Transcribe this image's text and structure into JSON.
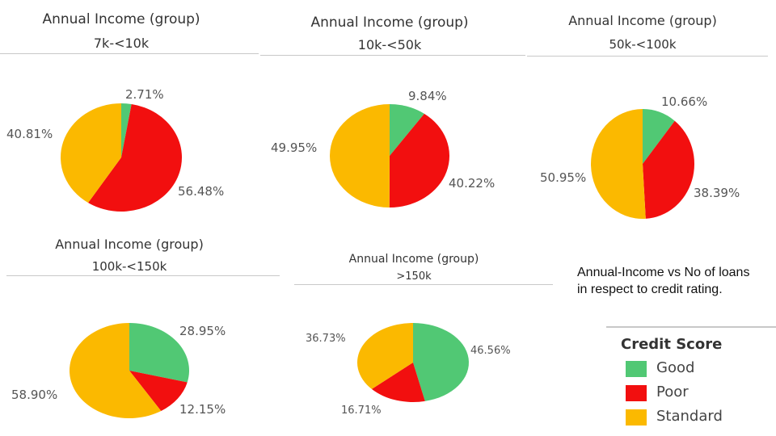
{
  "colors": {
    "Good": "#51c874",
    "Poor": "#f20f0f",
    "Standard": "#fbb900"
  },
  "note": "Annual-Income vs No of loans in respect to credit rating.",
  "legend": {
    "title": "Credit Score",
    "items": [
      {
        "label": "Good",
        "color": "#51c874"
      },
      {
        "label": "Poor",
        "color": "#f20f0f"
      },
      {
        "label": "Standard",
        "color": "#fbb900"
      }
    ]
  },
  "chart_data": [
    {
      "type": "pie",
      "title": "Annual Income (group)",
      "subtitle": "7k-<10k",
      "slices": [
        {
          "category": "Good",
          "value": 2.71,
          "label": "2.71%"
        },
        {
          "category": "Poor",
          "value": 56.48,
          "label": "56.48%"
        },
        {
          "category": "Standard",
          "value": 40.81,
          "label": "40.81%"
        }
      ]
    },
    {
      "type": "pie",
      "title": "Annual Income (group)",
      "subtitle": "10k-<50k",
      "slices": [
        {
          "category": "Good",
          "value": 9.84,
          "label": "9.84%"
        },
        {
          "category": "Poor",
          "value": 40.22,
          "label": "40.22%"
        },
        {
          "category": "Standard",
          "value": 49.95,
          "label": "49.95%"
        }
      ]
    },
    {
      "type": "pie",
      "title": "Annual Income (group)",
      "subtitle": "50k-<100k",
      "slices": [
        {
          "category": "Good",
          "value": 10.66,
          "label": "10.66%"
        },
        {
          "category": "Poor",
          "value": 38.39,
          "label": "38.39%"
        },
        {
          "category": "Standard",
          "value": 50.95,
          "label": "50.95%"
        }
      ]
    },
    {
      "type": "pie",
      "title": "Annual Income (group)",
      "subtitle": "100k-<150k",
      "slices": [
        {
          "category": "Good",
          "value": 28.95,
          "label": "28.95%"
        },
        {
          "category": "Poor",
          "value": 12.15,
          "label": "12.15%"
        },
        {
          "category": "Standard",
          "value": 58.9,
          "label": "58.90%"
        }
      ]
    },
    {
      "type": "pie",
      "title": "Annual Income (group)",
      "subtitle": ">150k",
      "slices": [
        {
          "category": "Good",
          "value": 46.56,
          "label": "46.56%"
        },
        {
          "category": "Poor",
          "value": 16.71,
          "label": "16.71%"
        },
        {
          "category": "Standard",
          "value": 36.73,
          "label": "36.73%"
        }
      ]
    }
  ]
}
